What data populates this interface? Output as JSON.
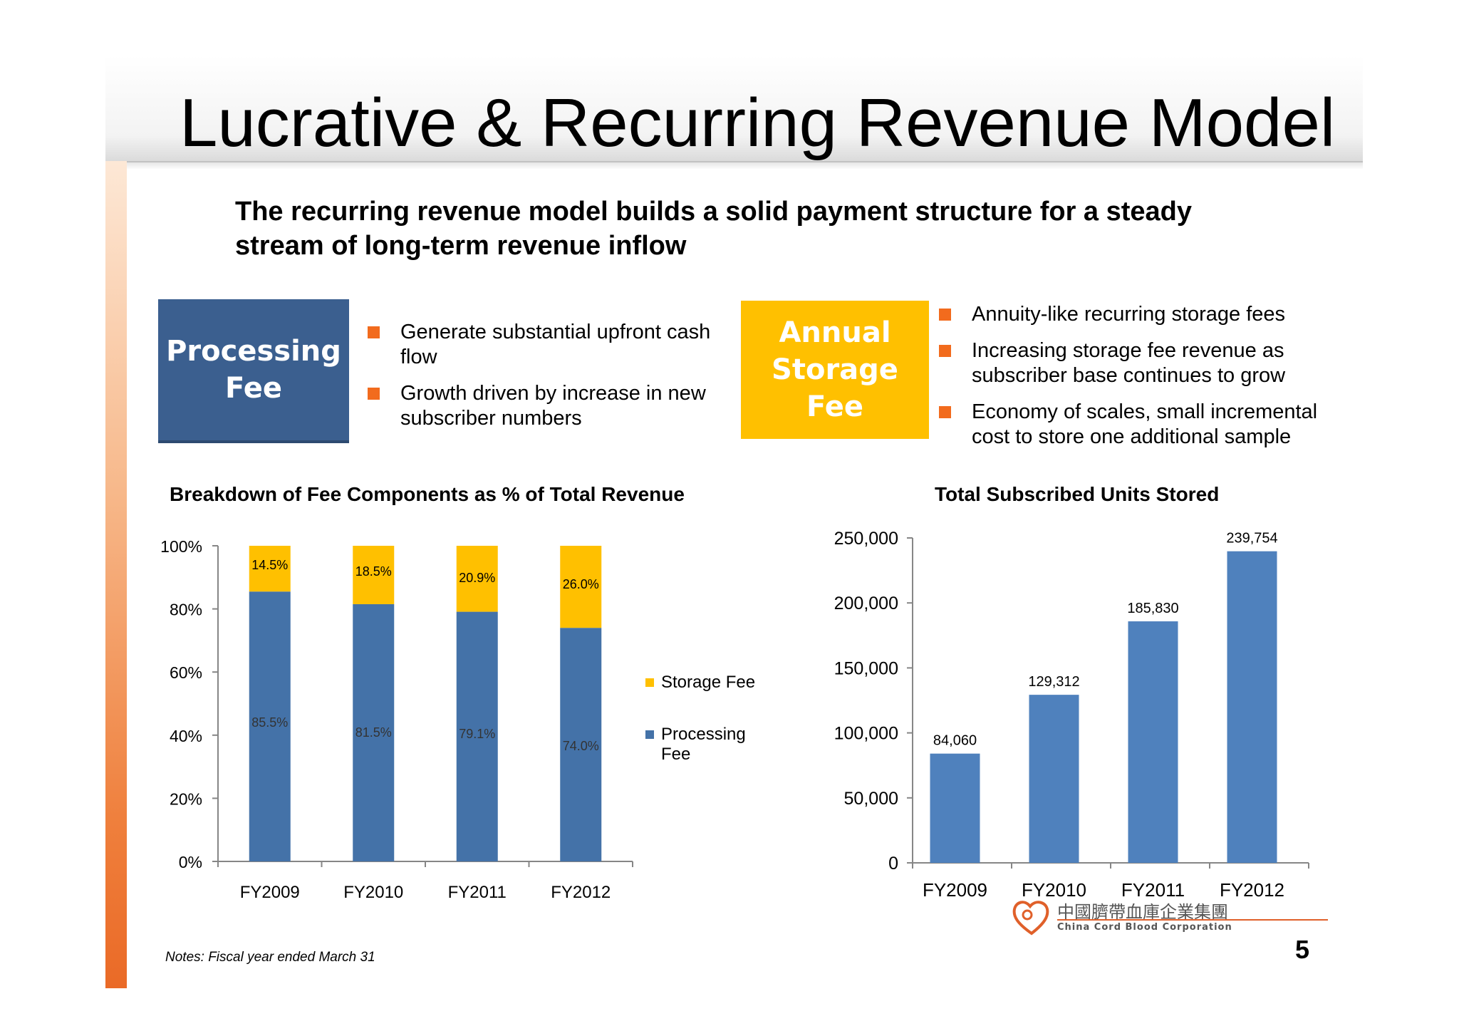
{
  "title": "Lucrative & Recurring Revenue Model",
  "subtitle": "The recurring revenue model builds a solid payment structure for a steady stream of long-term revenue inflow",
  "processing_box": {
    "label": "Processing\nFee",
    "color": "#3b5f8f",
    "bullets": [
      "Generate substantial upfront cash flow",
      "Growth driven by increase in new subscriber numbers"
    ]
  },
  "storage_box": {
    "label": "Annual\nStorage Fee",
    "color": "#ffc000",
    "bullets": [
      "Annuity-like recurring storage fees",
      "Increasing storage fee revenue as subscriber base continues to grow",
      "Economy of scales, small incremental cost to store one additional sample"
    ]
  },
  "bullet_color": "#f26b1d",
  "chart_data": [
    {
      "type": "bar",
      "stacked": true,
      "title": "Breakdown of Fee Components as % of Total Revenue",
      "categories": [
        "FY2009",
        "FY2010",
        "FY2011",
        "FY2012"
      ],
      "series": [
        {
          "name": "Processing Fee",
          "values": [
            85.5,
            81.5,
            79.1,
            74.0
          ],
          "labels": [
            "85.5%",
            "81.5%",
            "79.1%",
            "74.0%"
          ],
          "color": "#4472a8"
        },
        {
          "name": "Storage Fee",
          "values": [
            14.5,
            18.5,
            20.9,
            26.0
          ],
          "labels": [
            "14.5%",
            "18.5%",
            "20.9%",
            "26.0%"
          ],
          "color": "#ffc000"
        }
      ],
      "legend": [
        "Storage Fee",
        "Processing Fee"
      ],
      "ylim": [
        0,
        100
      ],
      "yticks": [
        "0%",
        "20%",
        "40%",
        "60%",
        "80%",
        "100%"
      ],
      "legend_position": "right"
    },
    {
      "type": "bar",
      "title": "Total Subscribed Units Stored",
      "categories": [
        "FY2009",
        "FY2010",
        "FY2011",
        "FY2012"
      ],
      "values": [
        84060,
        129312,
        185830,
        239754
      ],
      "labels": [
        "84,060",
        "129,312",
        "185,830",
        "239,754"
      ],
      "color": "#4f81bd",
      "ylim": [
        0,
        250000
      ],
      "yticks": [
        "0",
        "50,000",
        "100,000",
        "150,000",
        "200,000",
        "250,000"
      ]
    }
  ],
  "notes": "Notes: Fiscal year ended March 31",
  "page_number": "5",
  "logo": {
    "chinese": "中國臍帶血庫企業集團",
    "english": "China Cord Blood Corporation"
  }
}
